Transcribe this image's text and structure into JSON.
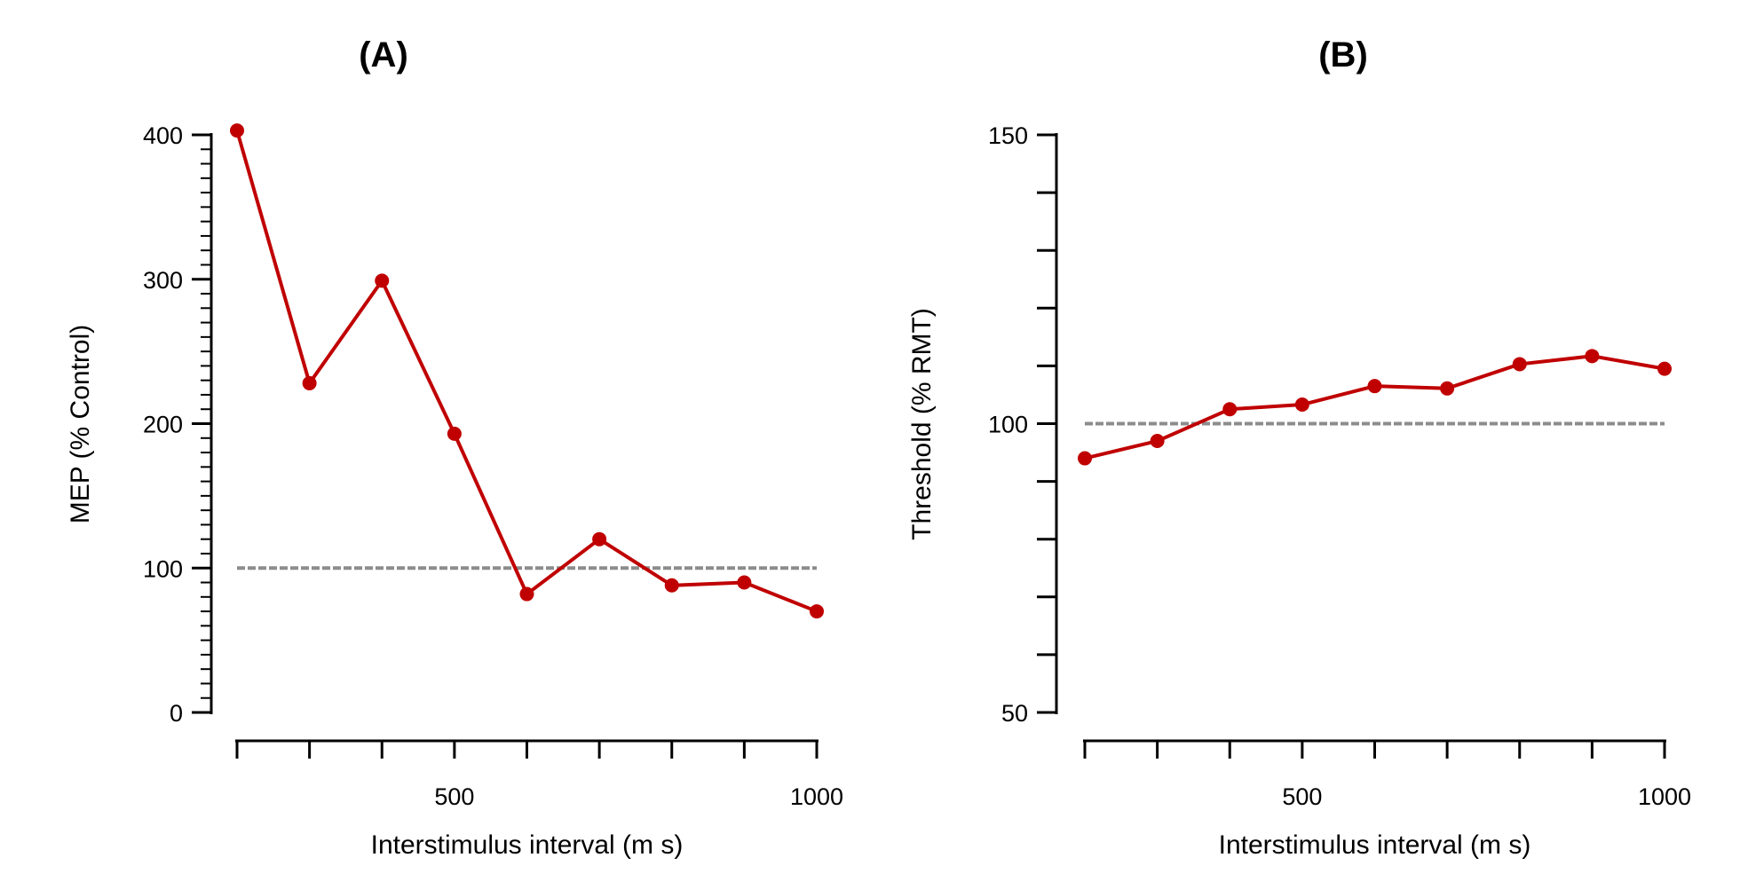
{
  "colors": {
    "series": "#c00000",
    "reference": "#8c8c8c",
    "axis": "#000000"
  },
  "chart_data": [
    {
      "type": "line",
      "title": "(A)",
      "xlabel": "Interstimulus interval (m s)",
      "ylabel": "MEP (% Control)",
      "xlim": [
        200,
        1000
      ],
      "ylim": [
        0,
        400
      ],
      "xticks": [
        200,
        300,
        400,
        500,
        600,
        700,
        800,
        900,
        1000
      ],
      "xtick_labels": [
        {
          "value": 500,
          "label": "500"
        },
        {
          "value": 1000,
          "label": "1000"
        }
      ],
      "yticks": [
        0,
        100,
        200,
        300,
        400
      ],
      "ytick_labels": [
        "0",
        "100",
        "200",
        "300",
        "400"
      ],
      "y_minor_step": 10,
      "reference_line": 100,
      "series": [
        {
          "name": "MEP",
          "x": [
            200,
            300,
            400,
            500,
            600,
            700,
            800,
            900,
            1000
          ],
          "values": [
            403,
            228,
            299,
            193,
            82,
            120,
            88,
            90,
            70
          ]
        }
      ]
    },
    {
      "type": "line",
      "title": "(B)",
      "xlabel": "Interstimulus interval (m s)",
      "ylabel": "Threshold (% RMT)",
      "xlim": [
        200,
        1000
      ],
      "ylim": [
        50,
        150
      ],
      "xticks": [
        200,
        300,
        400,
        500,
        600,
        700,
        800,
        900,
        1000
      ],
      "xtick_labels": [
        {
          "value": 500,
          "label": "500"
        },
        {
          "value": 1000,
          "label": "1000"
        }
      ],
      "yticks": [
        50,
        60,
        70,
        80,
        90,
        100,
        110,
        120,
        130,
        140,
        150
      ],
      "ytick_labels": [
        "50",
        "",
        "",
        "",
        "",
        "100",
        "",
        "",
        "",
        "",
        "150"
      ],
      "y_minor_step": null,
      "reference_line": 100,
      "series": [
        {
          "name": "Threshold",
          "x": [
            200,
            300,
            400,
            500,
            600,
            700,
            800,
            900,
            1000
          ],
          "values": [
            94,
            97,
            102.5,
            103.3,
            106.5,
            106.1,
            110.3,
            111.7,
            109.5
          ]
        }
      ]
    }
  ]
}
